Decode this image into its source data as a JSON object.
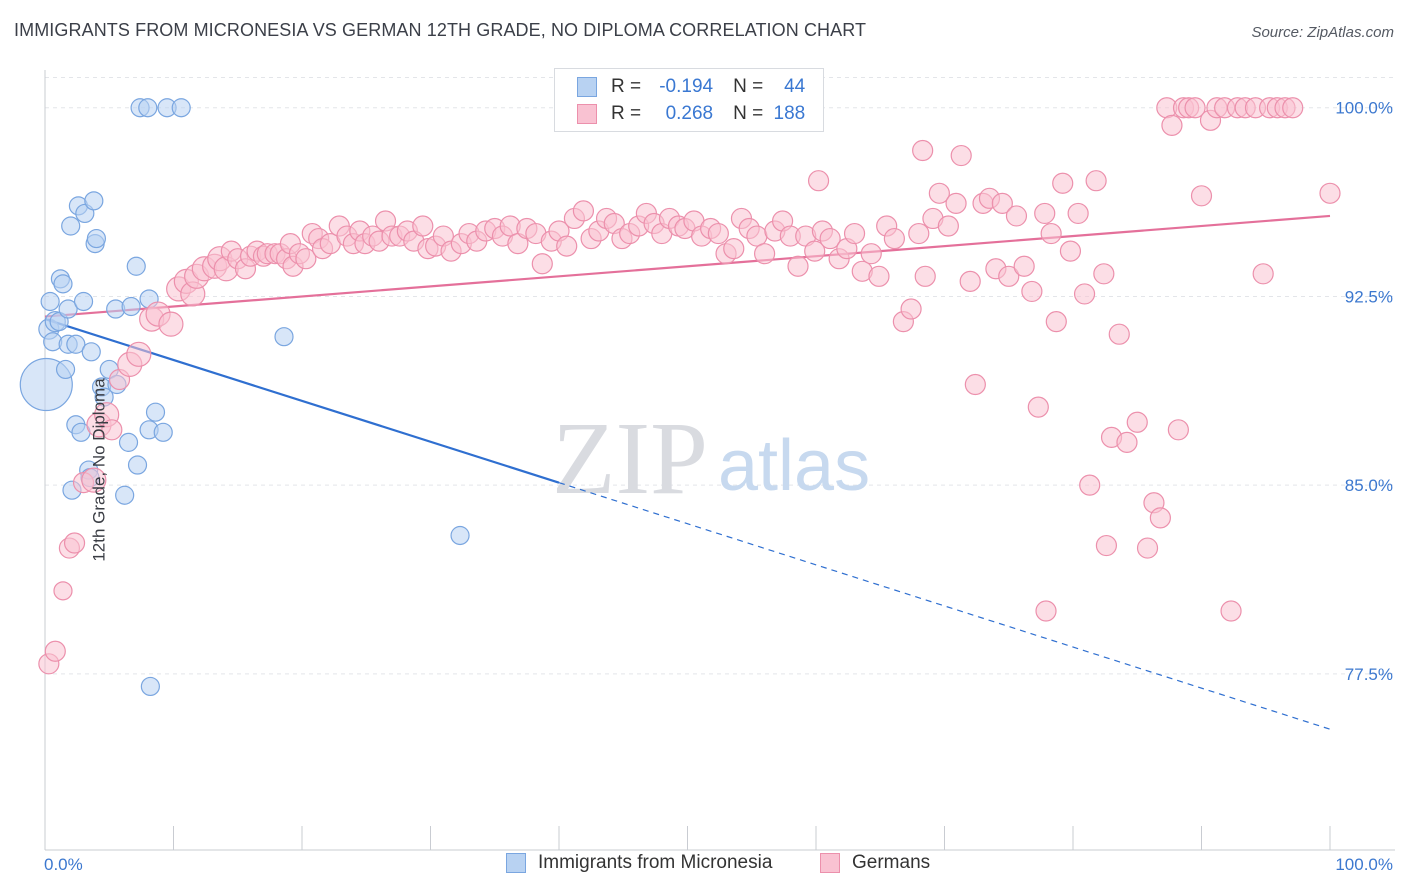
{
  "title": "IMMIGRANTS FROM MICRONESIA VS GERMAN 12TH GRADE, NO DIPLOMA CORRELATION CHART",
  "source": "Source: ZipAtlas.com",
  "watermark": {
    "zip": "ZIP",
    "atlas": "atlas"
  },
  "legend": {
    "r_label": "R =",
    "n_label": "N =",
    "rows": [
      {
        "r": "-0.194",
        "n": "44",
        "fill": "#b8d2f2",
        "stroke": "#7aa6e0"
      },
      {
        "r": "0.268",
        "n": "188",
        "fill": "#f9c2d2",
        "stroke": "#ec90ac"
      }
    ]
  },
  "bottom_legend": [
    {
      "label": "Immigrants from Micronesia",
      "fill": "#b8d2f2",
      "stroke": "#7aa6e0"
    },
    {
      "label": "Germans",
      "fill": "#f9c2d2",
      "stroke": "#ec90ac"
    }
  ],
  "chart_data": {
    "type": "scatter",
    "xlabel": "",
    "ylabel": "12th Grade, No Diploma",
    "xlim": [
      0,
      100
    ],
    "ylim": [
      70.5,
      101.5
    ],
    "x_tick_labels": [
      "0.0%",
      "100.0%"
    ],
    "y_ticks": [
      77.5,
      85.0,
      92.5,
      100.0
    ],
    "y_tick_labels": [
      "77.5%",
      "85.0%",
      "92.5%",
      "100.0%"
    ],
    "grid": "horizontal dashed",
    "series": [
      {
        "name": "Immigrants from Micronesia",
        "color": "#7aa6e0",
        "fill": "#b8d2f2",
        "trend": {
          "x0": 0,
          "y0": 91.6,
          "x1": 40,
          "y1": 85.1,
          "dash_to_x": 100,
          "dash_to_y": 75.3
        },
        "points": [
          [
            0.1,
            89.0,
            26
          ],
          [
            0.3,
            91.2,
            10
          ],
          [
            0.4,
            92.3,
            9
          ],
          [
            0.6,
            90.7,
            9
          ],
          [
            0.8,
            91.5,
            10
          ],
          [
            1.1,
            91.5,
            9
          ],
          [
            1.2,
            93.2,
            9
          ],
          [
            1.4,
            93.0,
            9
          ],
          [
            1.6,
            89.6,
            9
          ],
          [
            1.8,
            92.0,
            9
          ],
          [
            1.8,
            90.6,
            9
          ],
          [
            2.0,
            95.3,
            9
          ],
          [
            2.1,
            84.8,
            9
          ],
          [
            2.4,
            90.6,
            9
          ],
          [
            2.4,
            87.4,
            9
          ],
          [
            2.6,
            96.1,
            9
          ],
          [
            2.8,
            87.1,
            9
          ],
          [
            3.0,
            92.3,
            9
          ],
          [
            3.1,
            95.8,
            9
          ],
          [
            3.4,
            85.6,
            9
          ],
          [
            3.5,
            85.3,
            9
          ],
          [
            3.6,
            90.3,
            9
          ],
          [
            3.8,
            96.3,
            9
          ],
          [
            3.9,
            94.6,
            9
          ],
          [
            4.0,
            94.8,
            9
          ],
          [
            4.4,
            88.9,
            9
          ],
          [
            4.6,
            88.5,
            9
          ],
          [
            5.0,
            89.6,
            9
          ],
          [
            5.5,
            92.0,
            9
          ],
          [
            5.6,
            89.0,
            9
          ],
          [
            6.2,
            84.6,
            9
          ],
          [
            6.5,
            86.7,
            9
          ],
          [
            6.7,
            92.1,
            9
          ],
          [
            7.1,
            93.7,
            9
          ],
          [
            7.2,
            85.8,
            9
          ],
          [
            7.4,
            100.0,
            9
          ],
          [
            8.0,
            100.0,
            9
          ],
          [
            8.1,
            92.4,
            9
          ],
          [
            8.1,
            87.2,
            9
          ],
          [
            8.2,
            77.0,
            9
          ],
          [
            8.6,
            87.9,
            9
          ],
          [
            9.2,
            87.1,
            9
          ],
          [
            9.5,
            100.0,
            9
          ],
          [
            10.6,
            100.0,
            9
          ],
          [
            18.6,
            90.9,
            9
          ],
          [
            32.3,
            83.0,
            9
          ]
        ]
      },
      {
        "name": "Germans",
        "color": "#ec90ac",
        "fill": "#f9c2d2",
        "trend": {
          "x0": 0,
          "y0": 91.7,
          "x1": 100,
          "y1": 95.7
        },
        "points": [
          [
            0.3,
            77.9,
            10
          ],
          [
            0.8,
            78.4,
            10
          ],
          [
            1.4,
            80.8,
            9
          ],
          [
            1.9,
            82.5,
            10
          ],
          [
            2.3,
            82.7,
            10
          ],
          [
            3.0,
            85.1,
            10
          ],
          [
            3.8,
            85.2,
            12
          ],
          [
            4.2,
            87.4,
            12
          ],
          [
            4.8,
            87.8,
            12
          ],
          [
            5.2,
            87.2,
            10
          ],
          [
            5.8,
            89.2,
            10
          ],
          [
            6.6,
            89.8,
            12
          ],
          [
            7.3,
            90.2,
            12
          ],
          [
            8.3,
            91.6,
            12
          ],
          [
            8.8,
            91.8,
            12
          ],
          [
            9.8,
            91.4,
            12
          ],
          [
            10.4,
            92.8,
            12
          ],
          [
            11.0,
            93.1,
            12
          ],
          [
            11.5,
            92.6,
            12
          ],
          [
            11.8,
            93.3,
            12
          ],
          [
            12.4,
            93.6,
            12
          ],
          [
            13.2,
            93.7,
            12
          ],
          [
            13.6,
            94.0,
            12
          ],
          [
            14.1,
            93.6,
            12
          ],
          [
            14.5,
            94.3,
            10
          ],
          [
            15.0,
            94.0,
            10
          ],
          [
            15.6,
            93.6,
            10
          ],
          [
            16.0,
            94.1,
            10
          ],
          [
            16.5,
            94.3,
            10
          ],
          [
            17.0,
            94.1,
            10
          ],
          [
            17.3,
            94.2,
            10
          ],
          [
            17.9,
            94.2,
            10
          ],
          [
            18.3,
            94.2,
            10
          ],
          [
            18.8,
            94.0,
            10
          ],
          [
            19.1,
            94.6,
            10
          ],
          [
            19.3,
            93.7,
            10
          ],
          [
            19.8,
            94.2,
            10
          ],
          [
            20.3,
            94.0,
            10
          ],
          [
            20.8,
            95.0,
            10
          ],
          [
            21.3,
            94.8,
            10
          ],
          [
            21.6,
            94.4,
            10
          ],
          [
            22.2,
            94.6,
            10
          ],
          [
            22.9,
            95.3,
            10
          ],
          [
            23.5,
            94.9,
            10
          ],
          [
            24.0,
            94.6,
            10
          ],
          [
            24.5,
            95.1,
            10
          ],
          [
            24.9,
            94.6,
            10
          ],
          [
            25.5,
            94.9,
            10
          ],
          [
            26.0,
            94.7,
            10
          ],
          [
            26.5,
            95.5,
            10
          ],
          [
            27.0,
            94.9,
            10
          ],
          [
            27.6,
            94.9,
            10
          ],
          [
            28.2,
            95.1,
            10
          ],
          [
            28.7,
            94.7,
            10
          ],
          [
            29.4,
            95.3,
            10
          ],
          [
            29.8,
            94.4,
            10
          ],
          [
            30.4,
            94.5,
            10
          ],
          [
            31.0,
            94.9,
            10
          ],
          [
            31.6,
            94.3,
            10
          ],
          [
            32.4,
            94.6,
            10
          ],
          [
            33.0,
            95.0,
            10
          ],
          [
            33.6,
            94.7,
            10
          ],
          [
            34.3,
            95.1,
            10
          ],
          [
            35.0,
            95.2,
            10
          ],
          [
            35.6,
            94.9,
            10
          ],
          [
            36.2,
            95.3,
            10
          ],
          [
            36.8,
            94.6,
            10
          ],
          [
            37.5,
            95.2,
            10
          ],
          [
            38.2,
            95.0,
            10
          ],
          [
            38.7,
            93.8,
            10
          ],
          [
            39.4,
            94.7,
            10
          ],
          [
            40.0,
            95.1,
            10
          ],
          [
            40.6,
            94.5,
            10
          ],
          [
            41.2,
            95.6,
            10
          ],
          [
            41.9,
            95.9,
            10
          ],
          [
            42.5,
            94.8,
            10
          ],
          [
            43.1,
            95.1,
            10
          ],
          [
            43.7,
            95.6,
            10
          ],
          [
            44.3,
            95.4,
            10
          ],
          [
            44.9,
            94.8,
            10
          ],
          [
            45.5,
            95.0,
            10
          ],
          [
            46.2,
            95.3,
            10
          ],
          [
            46.8,
            95.8,
            10
          ],
          [
            47.4,
            95.4,
            10
          ],
          [
            48.0,
            95.0,
            10
          ],
          [
            48.6,
            95.6,
            10
          ],
          [
            49.3,
            95.3,
            10
          ],
          [
            49.8,
            95.2,
            10
          ],
          [
            50.5,
            95.5,
            10
          ],
          [
            51.1,
            94.9,
            10
          ],
          [
            51.8,
            95.2,
            10
          ],
          [
            52.4,
            95.0,
            10
          ],
          [
            53.0,
            94.2,
            10
          ],
          [
            53.6,
            94.4,
            10
          ],
          [
            54.2,
            95.6,
            10
          ],
          [
            54.8,
            95.2,
            10
          ],
          [
            55.4,
            94.9,
            10
          ],
          [
            56.0,
            94.2,
            10
          ],
          [
            56.8,
            95.1,
            10
          ],
          [
            57.4,
            95.5,
            10
          ],
          [
            58.0,
            94.9,
            10
          ],
          [
            58.6,
            93.7,
            10
          ],
          [
            59.2,
            94.9,
            10
          ],
          [
            59.9,
            94.3,
            10
          ],
          [
            60.5,
            95.1,
            10
          ],
          [
            61.1,
            94.8,
            10
          ],
          [
            61.8,
            94.0,
            10
          ],
          [
            62.4,
            94.4,
            10
          ],
          [
            63.0,
            95.0,
            10
          ],
          [
            63.6,
            93.5,
            10
          ],
          [
            64.3,
            94.2,
            10
          ],
          [
            64.9,
            93.3,
            10
          ],
          [
            65.5,
            95.3,
            10
          ],
          [
            66.1,
            94.8,
            10
          ],
          [
            66.8,
            91.5,
            10
          ],
          [
            67.4,
            92.0,
            10
          ],
          [
            68.0,
            95.0,
            10
          ],
          [
            68.5,
            93.3,
            10
          ],
          [
            69.1,
            95.6,
            10
          ],
          [
            69.6,
            96.6,
            10
          ],
          [
            70.3,
            95.3,
            10
          ],
          [
            70.9,
            96.2,
            10
          ],
          [
            71.3,
            98.1,
            10
          ],
          [
            72.0,
            93.1,
            10
          ],
          [
            72.4,
            89.0,
            10
          ],
          [
            73.0,
            96.2,
            10
          ],
          [
            73.5,
            96.4,
            10
          ],
          [
            74.0,
            93.6,
            10
          ],
          [
            74.5,
            96.2,
            10
          ],
          [
            75.0,
            93.3,
            10
          ],
          [
            75.6,
            95.7,
            10
          ],
          [
            76.2,
            93.7,
            10
          ],
          [
            76.8,
            92.7,
            10
          ],
          [
            77.3,
            88.1,
            10
          ],
          [
            77.8,
            95.8,
            10
          ],
          [
            78.3,
            95.0,
            10
          ],
          [
            78.7,
            91.5,
            10
          ],
          [
            79.2,
            97.0,
            10
          ],
          [
            79.8,
            94.3,
            10
          ],
          [
            80.4,
            95.8,
            10
          ],
          [
            80.9,
            92.6,
            10
          ],
          [
            81.3,
            85.0,
            10
          ],
          [
            81.8,
            97.1,
            10
          ],
          [
            82.4,
            93.4,
            10
          ],
          [
            83.0,
            86.9,
            10
          ],
          [
            83.6,
            91.0,
            10
          ],
          [
            84.2,
            86.7,
            10
          ],
          [
            85.0,
            87.5,
            10
          ],
          [
            85.8,
            82.5,
            10
          ],
          [
            86.3,
            84.3,
            10
          ],
          [
            86.8,
            83.7,
            10
          ],
          [
            87.3,
            100.0,
            10
          ],
          [
            87.7,
            99.3,
            10
          ],
          [
            88.2,
            87.2,
            10
          ],
          [
            88.6,
            100.0,
            10
          ],
          [
            89.0,
            100.0,
            10
          ],
          [
            89.5,
            100.0,
            10
          ],
          [
            90.0,
            96.5,
            10
          ],
          [
            90.7,
            99.5,
            10
          ],
          [
            91.2,
            100.0,
            10
          ],
          [
            91.8,
            100.0,
            10
          ],
          [
            92.3,
            80.0,
            10
          ],
          [
            92.8,
            100.0,
            10
          ],
          [
            93.4,
            100.0,
            10
          ],
          [
            94.2,
            100.0,
            10
          ],
          [
            94.8,
            93.4,
            10
          ],
          [
            95.3,
            100.0,
            10
          ],
          [
            95.9,
            100.0,
            10
          ],
          [
            96.5,
            100.0,
            10
          ],
          [
            97.1,
            100.0,
            10
          ],
          [
            100.0,
            96.6,
            10
          ],
          [
            68.3,
            98.3,
            10
          ],
          [
            60.2,
            97.1,
            10
          ],
          [
            82.6,
            82.6,
            10
          ],
          [
            77.9,
            80.0,
            10
          ]
        ]
      }
    ]
  }
}
